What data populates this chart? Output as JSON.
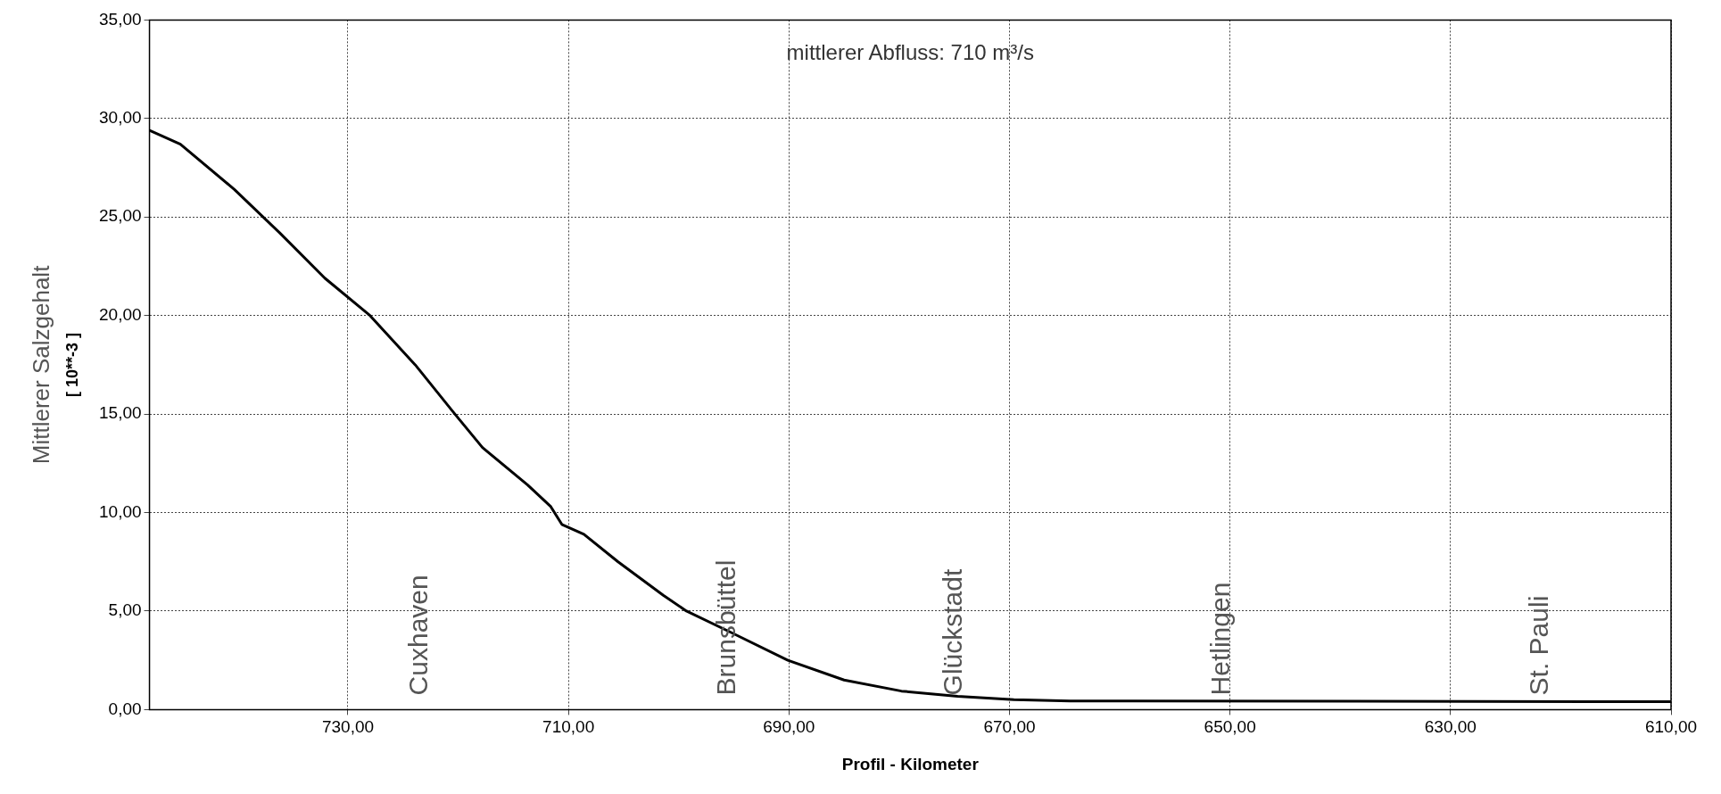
{
  "chart_data": {
    "type": "line",
    "xlabel": "Profil - Kilometer",
    "ylabel": "Mittlerer Salzgehalt\n[ 10**-3 ]",
    "x": [
      748,
      745.2,
      740.3,
      736.2,
      732.1,
      728,
      723.9,
      720.3,
      717.8,
      713.7,
      711.6,
      710.6,
      708.6,
      705.5,
      701.4,
      699.3,
      695.2,
      690.1,
      685,
      679.8,
      674.7,
      669.6,
      664.5,
      610
    ],
    "series": [
      {
        "color": "#000000",
        "values": [
          29.4,
          28.7,
          26.4,
          24.2,
          21.9,
          20,
          17.5,
          15,
          13.3,
          11.4,
          10.3,
          9.4,
          8.9,
          7.5,
          5.8,
          5,
          3.9,
          2.5,
          1.5,
          0.94,
          0.67,
          0.5,
          0.44,
          0.4
        ]
      }
    ],
    "xlim": [
      748,
      610
    ],
    "xticks": [
      {
        "value": 730,
        "label": "730,00"
      },
      {
        "value": 710,
        "label": "710,00"
      },
      {
        "value": 690,
        "label": "690,00"
      },
      {
        "value": 670,
        "label": "670,00"
      },
      {
        "value": 650,
        "label": "650,00"
      },
      {
        "value": 630,
        "label": "630,00"
      },
      {
        "value": 610,
        "label": "610,00"
      }
    ],
    "ylim": [
      0,
      35
    ],
    "yticks": [
      {
        "value": 0,
        "label": "0,00"
      },
      {
        "value": 5,
        "label": "5,00"
      },
      {
        "value": 10,
        "label": "10,00"
      },
      {
        "value": 15,
        "label": "15,00"
      },
      {
        "value": 20,
        "label": "20,00"
      },
      {
        "value": 25,
        "label": "25,00"
      },
      {
        "value": 30,
        "label": "30,00"
      },
      {
        "value": 35,
        "label": "35,00"
      }
    ],
    "grid": true,
    "legend": false,
    "marker": "none",
    "line_style": "solid",
    "annotations": [
      "mittlerer Abfluss: 710 m³/s",
      "Cuxhaven",
      "Brunsbüttel",
      "Glückstadt",
      "Hetlingen",
      "St. Pauli"
    ]
  }
}
